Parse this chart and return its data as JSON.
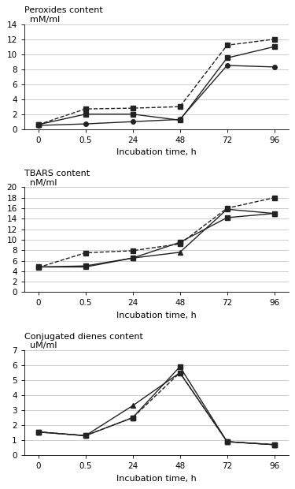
{
  "x_positions": [
    0,
    1,
    2,
    3,
    4,
    5
  ],
  "x_labels": [
    "0",
    "0.5",
    "24",
    "48",
    "72",
    "96"
  ],
  "peroxides": {
    "title1": "Peroxides content",
    "title2": "  mM/ml",
    "xlabel": "Incubation time, h",
    "ylim": [
      0,
      14
    ],
    "yticks": [
      0,
      2,
      4,
      6,
      8,
      10,
      12,
      14
    ],
    "series": [
      {
        "y": [
          0.6,
          2.0,
          2.0,
          1.2,
          9.5,
          11.0
        ],
        "style": "solid",
        "marker": "s"
      },
      {
        "y": [
          0.6,
          2.7,
          2.8,
          3.0,
          11.2,
          12.0
        ],
        "style": "dashed",
        "marker": "s"
      },
      {
        "y": [
          0.5,
          0.7,
          1.0,
          1.3,
          8.5,
          8.3
        ],
        "style": "solid",
        "marker": "o"
      }
    ]
  },
  "tbars": {
    "title1": "TBARS content",
    "title2": "  nM/ml",
    "xlabel": "Incubation time, h",
    "ylim": [
      0,
      20
    ],
    "yticks": [
      0,
      2,
      4,
      6,
      8,
      10,
      12,
      14,
      16,
      18,
      20
    ],
    "series": [
      {
        "y": [
          4.8,
          5.0,
          6.5,
          9.5,
          14.2,
          15.0
        ],
        "style": "solid",
        "marker": "s"
      },
      {
        "y": [
          4.7,
          7.5,
          7.9,
          9.2,
          16.0,
          18.0
        ],
        "style": "dashed",
        "marker": "s"
      },
      {
        "y": [
          4.8,
          4.8,
          6.5,
          7.6,
          15.8,
          15.0
        ],
        "style": "solid",
        "marker": "^"
      }
    ]
  },
  "dienes": {
    "title1": "Conjugated dienes content",
    "title2": "  uM/ml",
    "xlabel": "Incubation time, h",
    "ylim": [
      0,
      7
    ],
    "yticks": [
      0,
      1,
      2,
      3,
      4,
      5,
      6,
      7
    ],
    "series": [
      {
        "y": [
          1.55,
          1.3,
          2.5,
          5.9,
          0.9,
          0.7
        ],
        "style": "solid",
        "marker": "s"
      },
      {
        "y": [
          1.55,
          1.3,
          2.5,
          5.5,
          0.9,
          0.7
        ],
        "style": "dashed",
        "marker": "s"
      },
      {
        "y": [
          1.55,
          1.3,
          3.3,
          5.5,
          0.9,
          0.7
        ],
        "style": "solid",
        "marker": "^"
      }
    ]
  },
  "line_color": "#222222",
  "marker_size": 4,
  "linewidth": 1.0
}
